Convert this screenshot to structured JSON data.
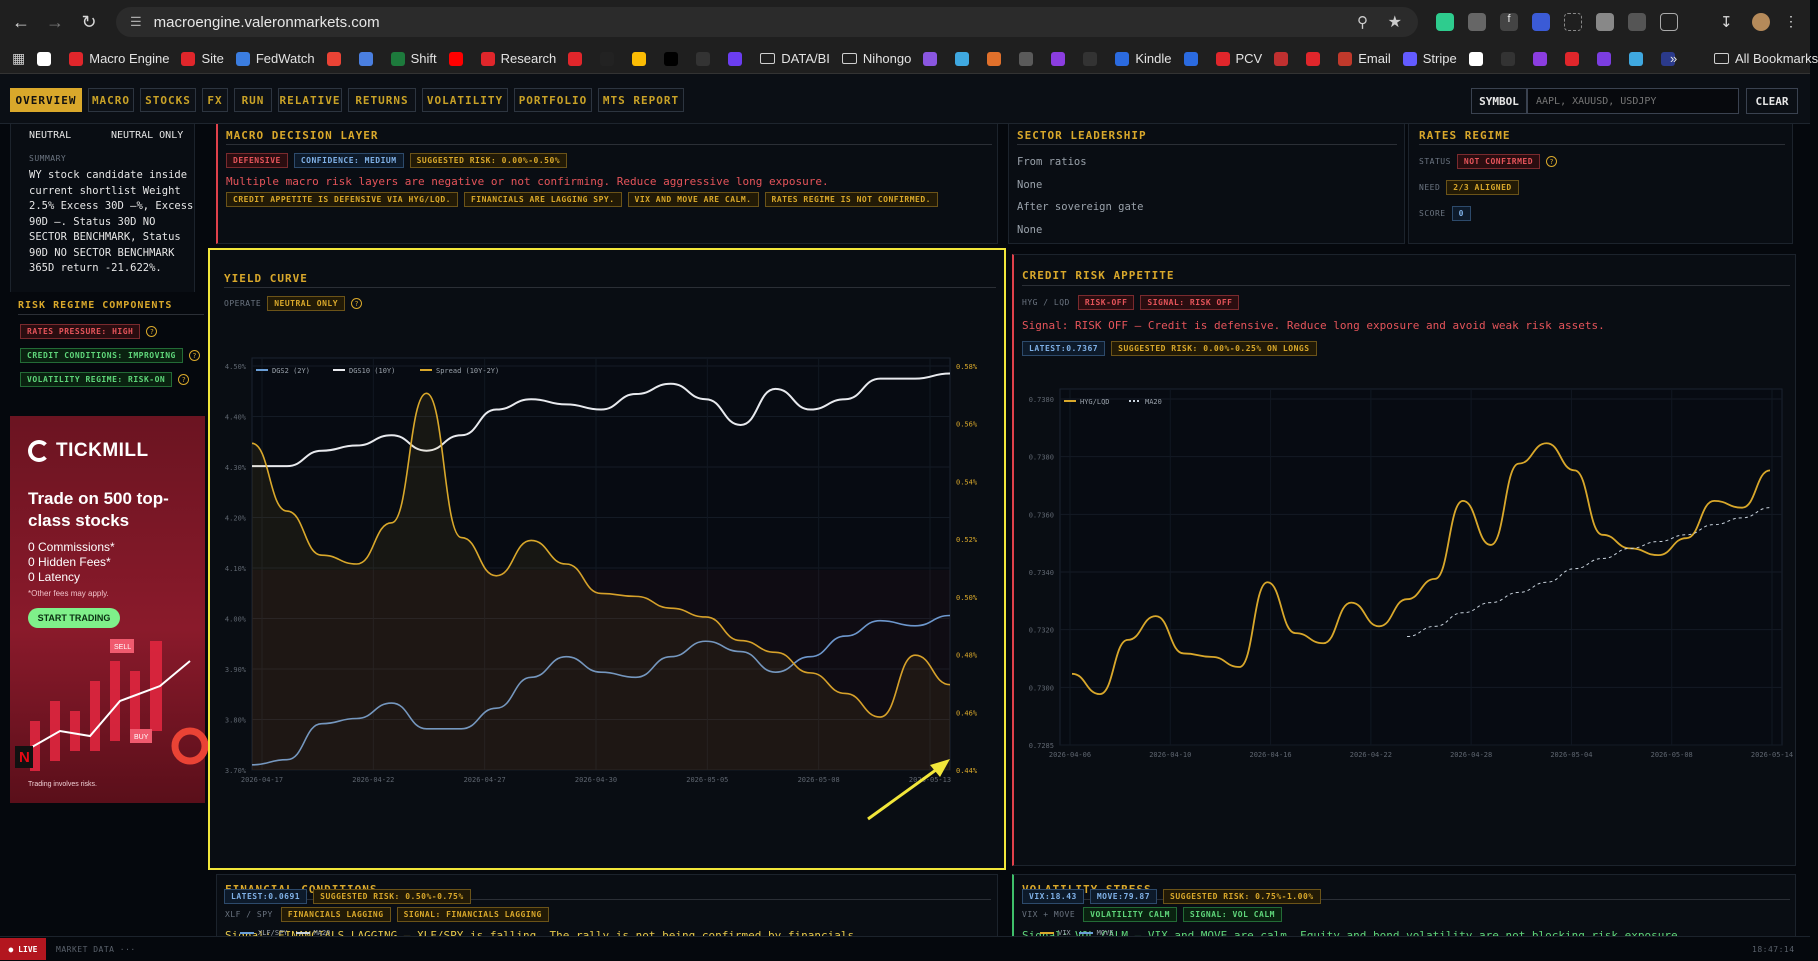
{
  "browser": {
    "url": "macroengine.valeronmarkets.com",
    "bookmarks": [
      {
        "label": "",
        "color": "#ffffff"
      },
      {
        "label": "Macro Engine",
        "color": "#e0262b"
      },
      {
        "label": "Site",
        "color": "#e0262b"
      },
      {
        "label": "FedWatch",
        "color": "#3b7de0"
      },
      {
        "label": "",
        "color": "#ea4335"
      },
      {
        "label": "",
        "color": "#4a7fe0"
      },
      {
        "label": "Shift",
        "color": "#1d7a3c"
      },
      {
        "label": "",
        "color": "#ff0000"
      },
      {
        "label": "Research",
        "color": "#e0262b"
      },
      {
        "label": "",
        "color": "#e0262b"
      },
      {
        "label": "",
        "color": "#222222"
      },
      {
        "label": "",
        "color": "#fbbc04"
      },
      {
        "label": "",
        "color": "#000000"
      },
      {
        "label": "",
        "color": "#333333"
      },
      {
        "label": "",
        "color": "#6b3df0"
      }
    ],
    "folders": [
      "DATA/BI",
      "Nihongo"
    ],
    "bookmarks2": [
      {
        "label": "",
        "color": "#8a56e0"
      },
      {
        "label": "",
        "color": "#3fa8e0"
      },
      {
        "label": "",
        "color": "#e0702b"
      },
      {
        "label": "",
        "color": "#5a5a5a"
      },
      {
        "label": "",
        "color": "#8b3de0"
      },
      {
        "label": "",
        "color": "#333333"
      },
      {
        "label": "Kindle",
        "color": "#2b6be0"
      },
      {
        "label": "",
        "color": "#2b6be0"
      },
      {
        "label": "PCV",
        "color": "#e0262b"
      },
      {
        "label": "",
        "color": "#c03030"
      },
      {
        "label": "",
        "color": "#e0262b"
      },
      {
        "label": "Email",
        "color": "#c0392b"
      },
      {
        "label": "Stripe",
        "color": "#635bff"
      },
      {
        "label": "",
        "color": "#ffffff"
      },
      {
        "label": "",
        "color": "#333333"
      },
      {
        "label": "",
        "color": "#8b3de0"
      },
      {
        "label": "",
        "color": "#e0262b"
      },
      {
        "label": "",
        "color": "#7b3de0"
      },
      {
        "label": "",
        "color": "#3fa8e0"
      },
      {
        "label": "",
        "color": "#2b3a8b"
      }
    ],
    "more": "»",
    "all_bookmarks": "All Bookmarks"
  },
  "nav": {
    "tabs": [
      "OVERVIEW",
      "MACRO",
      "STOCKS",
      "FX",
      "RUN",
      "RELATIVE",
      "RETURNS",
      "VOLATILITY",
      "PORTFOLIO",
      "MTS REPORT"
    ],
    "active": "OVERVIEW",
    "symbol_label": "SYMBOL",
    "symbol_placeholder": "AAPL, XAUUSD, USDJPY",
    "clear_label": "CLEAR"
  },
  "left": {
    "neutral1": "NEUTRAL",
    "neutral2": "NEUTRAL ONLY",
    "summary_label": "SUMMARY",
    "summary_text": "WY stock candidate inside current shortlist Weight 2.5% Excess 30D —%, Excess 90D —. Status 30D NO SECTOR BENCHMARK, Status 90D NO SECTOR BENCHMARK 365D return -21.622%.",
    "risk_title": "RISK REGIME COMPONENTS",
    "risk_tags": [
      "RATES PRESSURE: HIGH",
      "CREDIT CONDITIONS: IMPROVING",
      "VOLATILITY REGIME: RISK-ON"
    ]
  },
  "ad": {
    "brand": "TICKMILL",
    "headline": "Trade on 500 top-class stocks",
    "bullets": [
      "0 Commissions*",
      "0 Hidden Fees*",
      "0 Latency"
    ],
    "note": "*Other fees may apply.",
    "cta": "START TRADING",
    "badges": [
      "SELL",
      "BUY"
    ],
    "footer": "Trading involves risks."
  },
  "macro": {
    "title": "MACRO DECISION LAYER",
    "tags": [
      "DEFENSIVE",
      "CONFIDENCE: MEDIUM",
      "SUGGESTED RISK: 0.00%-0.50%"
    ],
    "message": "Multiple macro risk layers are negative or not confirming. Reduce aggressive long exposure.",
    "reasons": [
      "CREDIT APPETITE IS DEFENSIVE VIA HYG/LQD.",
      "FINANCIALS ARE LAGGING SPY.",
      "VIX AND MOVE ARE CALM.",
      "RATES REGIME IS NOT CONFIRMED."
    ]
  },
  "sector": {
    "title": "SECTOR LEADERSHIP",
    "lines": [
      "From ratios",
      "None",
      "After sovereign gate",
      "None"
    ]
  },
  "rates": {
    "title": "RATES REGIME",
    "status_label": "STATUS",
    "status": "NOT CONFIRMED",
    "need_label": "NEED",
    "need": "2/3 ALIGNED",
    "score_label": "SCORE",
    "score": "0"
  },
  "yield": {
    "title": "YIELD CURVE",
    "operate_label": "OPERATE",
    "operate": "NEUTRAL ONLY"
  },
  "credit": {
    "title": "CREDIT RISK APPETITE",
    "pair": "HYG / LQD",
    "tags": [
      "RISK-OFF",
      "SIGNAL: RISK OFF"
    ],
    "signal": "Signal: RISK OFF — Credit is defensive. Reduce long exposure and avoid weak risk assets.",
    "stat_tags": [
      "LATEST:0.7367",
      "SUGGESTED RISK: 0.00%-0.25% ON LONGS"
    ]
  },
  "financial": {
    "title": "FINANCIAL CONDITIONS",
    "pair": "XLF / SPY",
    "tags": [
      "FINANCIALS LAGGING",
      "SIGNAL: FINANCIALS LAGGING"
    ],
    "signal": "Signal: FINANCIALS LAGGING — XLF/SPY is falling. The rally is not being confirmed by financials.",
    "stat_tags": [
      "LATEST:0.0691",
      "SUGGESTED RISK: 0.50%-0.75%"
    ],
    "legend": [
      "XLF/SPY",
      "MA20"
    ]
  },
  "volatility": {
    "title": "VOLATILITY STRESS",
    "pair": "VIX + MOVE",
    "tags": [
      "VOLATILITY CALM",
      "SIGNAL: VOL CALM"
    ],
    "signal": "Signal: VOL CALM — VIX and MOVE are calm. Equity and bond volatility are not blocking risk exposure.",
    "stat_tags": [
      "VIX:18.43",
      "MOVE:79.87",
      "SUGGESTED RISK: 0.75%-1.00%"
    ],
    "legend": [
      "VIX",
      "MOVE"
    ]
  },
  "status": {
    "live": "● LIVE",
    "market": "MARKET DATA ···",
    "time": "18:47:14"
  },
  "chart_data": [
    {
      "type": "line",
      "legend": [
        "DGS2 (2Y)",
        "DGS10 (10Y)",
        "Spread (10Y-2Y)"
      ],
      "x_ticks": [
        "2026-04-17",
        "2026-04-22",
        "2026-04-27",
        "2026-04-30",
        "2026-05-05",
        "2026-05-08",
        "2026-05-13"
      ],
      "y_left_ticks": [
        "4.50%",
        "4.40%",
        "4.30%",
        "4.20%",
        "4.10%",
        "4.00%",
        "3.90%",
        "3.80%",
        "3.70%"
      ],
      "y_right_ticks": [
        "0.58%",
        "0.56%",
        "0.54%",
        "0.52%",
        "0.50%",
        "0.48%",
        "0.46%",
        "0.44%"
      ],
      "ylim_left": [
        3.7,
        4.5
      ],
      "ylim_right": [
        0.44,
        0.58
      ],
      "series": [
        {
          "name": "DGS2 (2Y)",
          "color": "#6a9ed6",
          "axis": "left",
          "values": [
            3.71,
            3.72,
            3.79,
            3.8,
            3.83,
            3.78,
            3.78,
            3.82,
            3.88,
            3.92,
            3.89,
            3.88,
            3.92,
            3.95,
            3.93,
            3.89,
            3.92,
            3.96,
            3.99,
            3.98,
            4.0
          ]
        },
        {
          "name": "DGS10 (10Y)",
          "color": "#e8eaee",
          "axis": "left",
          "values": [
            4.29,
            4.29,
            4.32,
            4.33,
            4.35,
            4.32,
            4.35,
            4.4,
            4.42,
            4.41,
            4.4,
            4.43,
            4.45,
            4.42,
            4.37,
            4.44,
            4.4,
            4.42,
            4.46,
            4.46,
            4.47
          ]
        },
        {
          "name": "Spread (10Y-2Y)",
          "color": "#d9a82b",
          "axis": "right",
          "values": [
            0.551,
            0.528,
            0.513,
            0.51,
            0.524,
            0.568,
            0.519,
            0.506,
            0.518,
            0.51,
            0.5,
            0.499,
            0.495,
            0.492,
            0.484,
            0.48,
            0.473,
            0.466,
            0.458,
            0.479,
            0.469
          ]
        }
      ]
    },
    {
      "type": "line",
      "legend": [
        "HYG/LQD",
        "MA20"
      ],
      "x_ticks": [
        "2026-04-06",
        "2026-04-10",
        "2026-04-16",
        "2026-04-22",
        "2026-04-28",
        "2026-05-04",
        "2026-05-08",
        "2026-05-14"
      ],
      "y_ticks": [
        "0.7380",
        "0.7380",
        "0.7360",
        "0.7340",
        "0.7320",
        "0.7300",
        "0.7285"
      ],
      "ylim": [
        0.7285,
        0.739
      ],
      "series": [
        {
          "name": "HYG/LQD",
          "color": "#d9a82b",
          "values": [
            0.7306,
            0.73,
            0.7316,
            0.7323,
            0.7312,
            0.7311,
            0.7308,
            0.7333,
            0.7318,
            0.7315,
            0.7327,
            0.732,
            0.7328,
            0.7334,
            0.7357,
            0.7344,
            0.7368,
            0.7374,
            0.7366,
            0.7347,
            0.7343,
            0.7341,
            0.7346,
            0.7357,
            0.7355,
            0.7366
          ]
        },
        {
          "name": "MA20",
          "color": "#c8d2dc",
          "dashed": true,
          "values": [
            null,
            null,
            null,
            null,
            null,
            null,
            null,
            null,
            null,
            null,
            null,
            null,
            0.7317,
            0.732,
            0.7324,
            0.7327,
            0.733,
            0.7333,
            0.7337,
            0.734,
            0.7343,
            0.7345,
            0.7347,
            0.735,
            0.7352,
            0.7355
          ]
        }
      ]
    }
  ]
}
